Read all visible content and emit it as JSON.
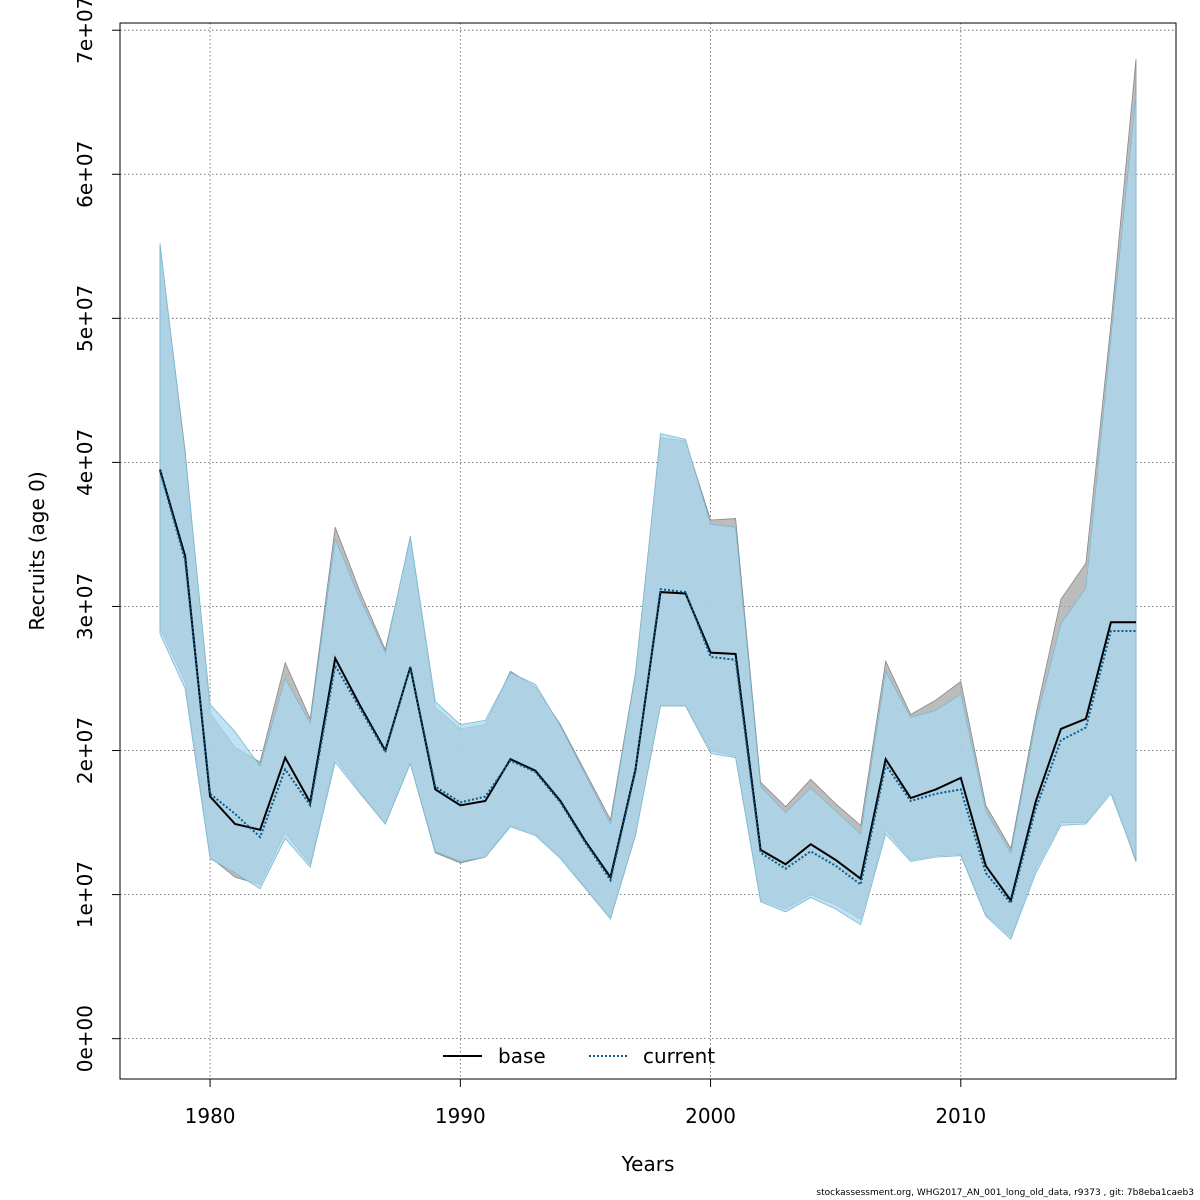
{
  "chart_data": {
    "type": "area",
    "xlabel": "Years",
    "ylabel": "Recruits (age 0)",
    "xlim": [
      1976.4,
      2018.6
    ],
    "ylim": [
      -2800000,
      70500000
    ],
    "x_ticks": [
      1980,
      1990,
      2000,
      2010
    ],
    "x_tick_labels": [
      "1980",
      "1990",
      "2000",
      "2010"
    ],
    "y_ticks": [
      0,
      10000000,
      20000000,
      30000000,
      40000000,
      50000000,
      60000000,
      70000000
    ],
    "y_tick_labels": [
      "0e+00",
      "1e+07",
      "2e+07",
      "3e+07",
      "4e+07",
      "5e+07",
      "6e+07",
      "7e+07"
    ],
    "grid": true,
    "legend_placement": "bottom",
    "x": [
      1978,
      1979,
      1980,
      1981,
      1982,
      1983,
      1984,
      1985,
      1986,
      1987,
      1988,
      1989,
      1990,
      1991,
      1992,
      1993,
      1994,
      1995,
      1996,
      1997,
      1998,
      1999,
      2000,
      2001,
      2002,
      2003,
      2004,
      2005,
      2006,
      2007,
      2008,
      2009,
      2010,
      2011,
      2012,
      2013,
      2014,
      2015,
      2016,
      2017
    ],
    "series": [
      {
        "name": "base",
        "line_style": "solid",
        "line_color": "#000000",
        "band_color": "#a6a6a6",
        "values": [
          39500000,
          33500000,
          16800000,
          14900000,
          14500000,
          19500000,
          16400000,
          26400000,
          23100000,
          20000000,
          25800000,
          17300000,
          16200000,
          16500000,
          19400000,
          18600000,
          16500000,
          13700000,
          11200000,
          18700000,
          31000000,
          30900000,
          26800000,
          26700000,
          13100000,
          12100000,
          13500000,
          12400000,
          11100000,
          19400000,
          16700000,
          17300000,
          18100000,
          12000000,
          9600000,
          16500000,
          21500000,
          22200000,
          28900000,
          28900000
        ],
        "lower": [
          28500000,
          24800000,
          12600000,
          11200000,
          10700000,
          14300000,
          12100000,
          19500000,
          17100000,
          14900000,
          19100000,
          12900000,
          12200000,
          12600000,
          14800000,
          14200000,
          12600000,
          10500000,
          8400000,
          14200000,
          23100000,
          23100000,
          20000000,
          19600000,
          9600000,
          9000000,
          10000000,
          9300000,
          8300000,
          14500000,
          12400000,
          12700000,
          12800000,
          8600000,
          7100000,
          11800000,
          15000000,
          15000000,
          17200000,
          12300000
        ],
        "upper": [
          55000000,
          40800000,
          22600000,
          20200000,
          19200000,
          26100000,
          22200000,
          35500000,
          31000000,
          27000000,
          34700000,
          23000000,
          21500000,
          21800000,
          25500000,
          24400000,
          21800000,
          18500000,
          15200000,
          25400000,
          41700000,
          41500000,
          36000000,
          36100000,
          17800000,
          16100000,
          18000000,
          16300000,
          14800000,
          26200000,
          22500000,
          23500000,
          24800000,
          16200000,
          13200000,
          22500000,
          30500000,
          33000000,
          49600000,
          68000000
        ]
      },
      {
        "name": "current",
        "line_style": "dotted",
        "line_color": "#0b5a8a",
        "band_color": "#a9d9f0",
        "values": [
          39400000,
          33200000,
          17000000,
          15600000,
          14000000,
          18700000,
          16200000,
          25900000,
          22900000,
          19900000,
          25800000,
          17500000,
          16400000,
          16800000,
          19300000,
          18500000,
          16400000,
          13600000,
          11000000,
          18600000,
          31200000,
          31000000,
          26500000,
          26300000,
          12900000,
          11800000,
          13000000,
          12000000,
          10700000,
          19000000,
          16500000,
          17000000,
          17300000,
          11500000,
          9400000,
          16000000,
          20700000,
          21600000,
          28300000,
          28300000
        ],
        "lower": [
          28100000,
          24300000,
          12500000,
          11500000,
          10400000,
          13900000,
          11900000,
          19200000,
          17000000,
          14900000,
          19100000,
          13000000,
          12300000,
          12600000,
          14700000,
          14100000,
          12500000,
          10400000,
          8300000,
          14100000,
          23100000,
          23100000,
          19800000,
          19500000,
          9500000,
          8800000,
          9800000,
          9000000,
          7900000,
          14200000,
          12300000,
          12600000,
          12700000,
          8500000,
          6900000,
          11500000,
          14800000,
          14900000,
          17000000,
          12400000
        ],
        "upper": [
          55200000,
          40600000,
          23200000,
          21300000,
          18900000,
          25000000,
          21900000,
          34700000,
          30500000,
          26800000,
          34900000,
          23400000,
          21800000,
          22100000,
          25400000,
          24600000,
          21700000,
          18300000,
          14900000,
          25300000,
          42000000,
          41600000,
          35700000,
          35500000,
          17500000,
          15700000,
          17400000,
          15800000,
          14200000,
          25500000,
          22300000,
          22800000,
          23900000,
          15800000,
          12900000,
          22000000,
          28800000,
          31300000,
          48600000,
          65500000
        ]
      }
    ]
  },
  "footer": "stockassessment.org, WHG2017_AN_001_long_old_data, r9373 , git: 7b8eba1caeb3"
}
